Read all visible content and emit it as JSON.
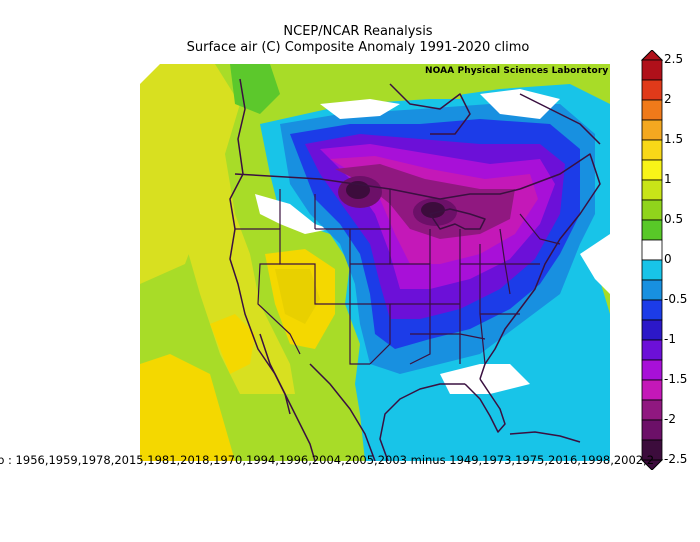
{
  "title_line1": "NCEP/NCAR Reanalysis",
  "title_line2": "Surface air (C) Composite Anomaly 1991-2020 climo",
  "credit": "NOAA Physical Sciences Laboratory",
  "footer": "eb : 1956,1959,1978,2015,1981,2018,1970,1994,1996,2004,2005,2003 minus 1949,1973,1975,2016,1998,2002,2",
  "colorbar": {
    "labels": [
      "2.5",
      "2",
      "1.5",
      "1",
      "0.5",
      "0",
      "-0.5",
      "-1",
      "-1.5",
      "-2",
      "-2.5"
    ],
    "colors": [
      "#b0101a",
      "#e03a1a",
      "#f07a1a",
      "#f4a820",
      "#f8d818",
      "#f8f418",
      "#c8e418",
      "#90d41c",
      "#58c828",
      "#ffffff",
      "#18c4e8",
      "#1890e0",
      "#1c3ce8",
      "#2c18c8",
      "#6c10d8",
      "#a810d8",
      "#c418b8",
      "#901880",
      "#6c1068",
      "#3c0c3c"
    ]
  },
  "colors": {
    "warm_yellow": "#f4d800",
    "light_yellow": "#d8e020",
    "light_green": "#a8dc28",
    "green": "#5cc82c",
    "cyan": "#18c4e8",
    "blue": "#1890e0",
    "dark_blue": "#1c3ce8",
    "purple": "#a810d8",
    "magenta": "#c418b8",
    "dark_purple": "#6c1068",
    "darkest": "#3c0c3c",
    "outline": "#3a1040"
  }
}
